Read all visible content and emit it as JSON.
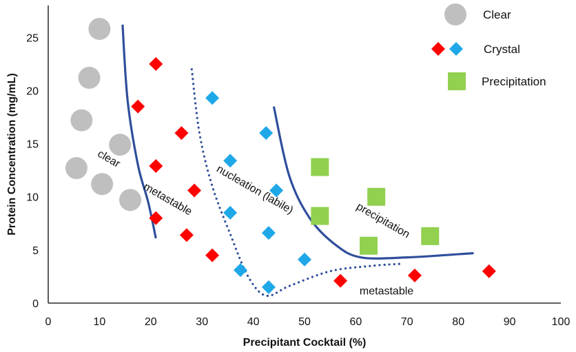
{
  "chart_data": {
    "type": "scatter",
    "xlabel": "Precipitant Cocktail (%)",
    "ylabel": "Protein Concentration (mg/mL)",
    "xlim": [
      0,
      100
    ],
    "ylim": [
      0,
      28
    ],
    "x_ticks": [
      0,
      10,
      20,
      30,
      40,
      50,
      60,
      70,
      80,
      90,
      100
    ],
    "y_ticks": [
      0,
      5,
      10,
      15,
      20,
      25
    ],
    "grid": false,
    "legend_position": "top-right",
    "colors": {
      "clear": "#BFBFBF",
      "crystal_red": "#FF0000",
      "crystal_blue": "#1FA8E8",
      "precipitation": "#92D050",
      "solid_curve": "#2F4E9C",
      "dotted_curve": "#2F4E9C"
    },
    "series": [
      {
        "name": "Clear",
        "marker": "circle",
        "points": [
          [
            10,
            25.8
          ],
          [
            8,
            21.2
          ],
          [
            6.5,
            17.2
          ],
          [
            14,
            14.9
          ],
          [
            5.5,
            12.7
          ],
          [
            10.5,
            11.2
          ],
          [
            16,
            9.7
          ]
        ]
      },
      {
        "name": "Crystal",
        "marker": "diamond",
        "points_red": [
          [
            21,
            22.5
          ],
          [
            17.5,
            18.5
          ],
          [
            26,
            16
          ],
          [
            21,
            12.9
          ],
          [
            28.5,
            10.6
          ],
          [
            21,
            8
          ],
          [
            27,
            6.4
          ],
          [
            32,
            4.5
          ],
          [
            57,
            2.1
          ],
          [
            71.5,
            2.6
          ],
          [
            86,
            3
          ]
        ],
        "points_blue": [
          [
            32,
            19.3
          ],
          [
            35.5,
            13.4
          ],
          [
            42.5,
            16
          ],
          [
            44.5,
            10.6
          ],
          [
            35.5,
            8.5
          ],
          [
            43,
            6.6
          ],
          [
            50,
            4.1
          ],
          [
            37.5,
            3.1
          ],
          [
            43,
            1.5
          ]
        ]
      },
      {
        "name": "Precipitation",
        "marker": "square",
        "points": [
          [
            53,
            12.8
          ],
          [
            53,
            8.2
          ],
          [
            64,
            10
          ],
          [
            62.5,
            5.4
          ],
          [
            74.5,
            6.3
          ]
        ]
      }
    ],
    "curves": [
      {
        "style": "solid",
        "points": [
          [
            14.5,
            26.2
          ],
          [
            15.5,
            19
          ],
          [
            17.5,
            13
          ],
          [
            19.5,
            9.5
          ],
          [
            21,
            6.1
          ]
        ]
      },
      {
        "style": "dotted",
        "points": [
          [
            28,
            22
          ],
          [
            29.5,
            16
          ],
          [
            32,
            11
          ],
          [
            35.5,
            6.5
          ],
          [
            39,
            2.5
          ],
          [
            42.5,
            0.7
          ],
          [
            47,
            1.6
          ],
          [
            55,
            3
          ],
          [
            63,
            3.5
          ],
          [
            69,
            3.7
          ]
        ]
      },
      {
        "style": "solid",
        "points": [
          [
            44,
            18.5
          ],
          [
            47,
            12
          ],
          [
            51,
            8
          ],
          [
            56,
            5.5
          ],
          [
            61,
            4.3
          ],
          [
            70,
            4.3
          ],
          [
            83,
            4.7
          ]
        ]
      }
    ],
    "annotations": [
      {
        "text": "clear",
        "x": 11.5,
        "y": 13.3,
        "rotate": 30
      },
      {
        "text": "metastable",
        "x": 23,
        "y": 9.5,
        "rotate": 30
      },
      {
        "text": "nucleation (labile)",
        "x": 40,
        "y": 10.4,
        "rotate": 30
      },
      {
        "text": "precipitation",
        "x": 65,
        "y": 7.5,
        "rotate": 30
      },
      {
        "text": "metastable",
        "x": 66,
        "y": 0.8,
        "rotate": 0
      }
    ],
    "legend": [
      {
        "label": "Clear",
        "markers": [
          "circle-gray"
        ]
      },
      {
        "label": "Crystal",
        "markers": [
          "diamond-red",
          "diamond-blue"
        ]
      },
      {
        "label": "Precipitation",
        "markers": [
          "square-green"
        ]
      }
    ]
  }
}
